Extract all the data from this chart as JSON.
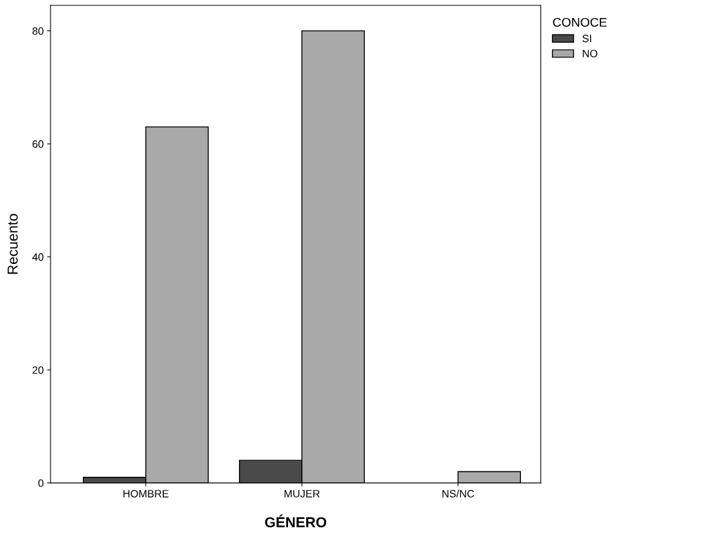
{
  "chart_data": {
    "type": "bar",
    "xlabel": "GÉNERO",
    "ylabel": "Recuento",
    "legend_title": "CONOCE",
    "categories": [
      "HOMBRE",
      "MUJER",
      "NS/NC"
    ],
    "series": [
      {
        "name": "SI",
        "color": "#4a4a4a",
        "values": [
          1,
          4,
          null
        ]
      },
      {
        "name": "NO",
        "color": "#a9a9a9",
        "values": [
          63,
          80,
          2
        ]
      }
    ],
    "ylim": [
      0,
      84.5
    ],
    "yticks": [
      0,
      20,
      40,
      60,
      80
    ],
    "grid": false,
    "legend": "top right"
  }
}
